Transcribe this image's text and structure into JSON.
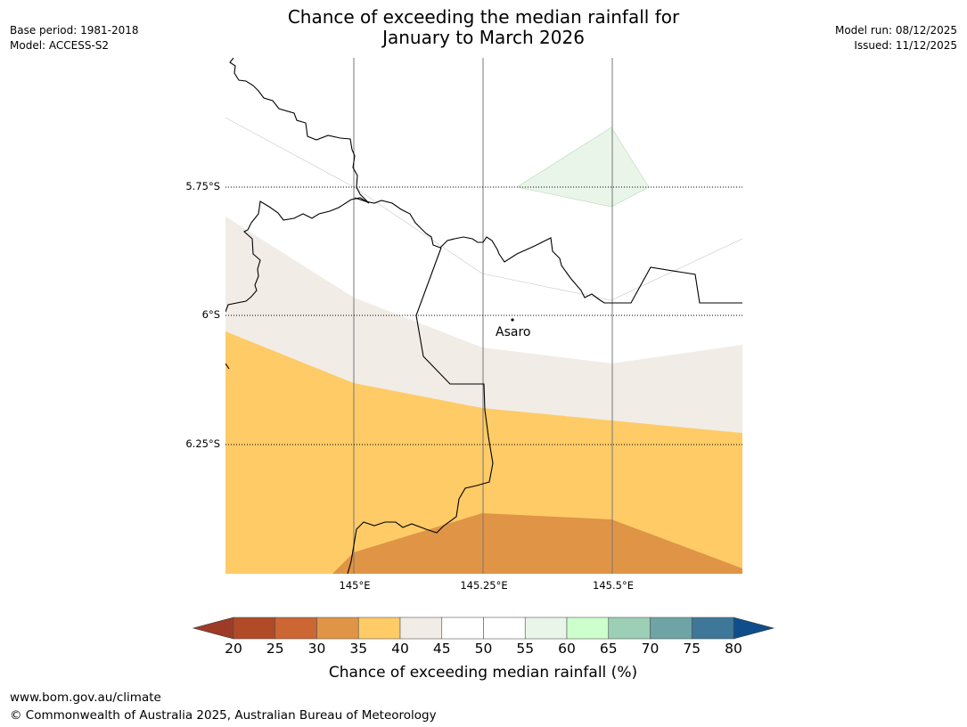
{
  "header": {
    "title_line1": "Chance of exceeding the median rainfall for",
    "title_line2": "January to March 2026",
    "base_period": "Base period: 1981-2018",
    "model": "Model: ACCESS-S2",
    "model_run": "Model run: 08/12/2025",
    "issued": "Issued: 11/12/2025"
  },
  "map": {
    "latitude_labels": [
      "5.75°S",
      "6°S",
      "6.25°S"
    ],
    "longitude_labels": [
      "145°E",
      "145.25°E",
      "145.5°E"
    ],
    "place_label": "Asaro",
    "colors": {
      "20-25": "#b04a27",
      "30-35": "#e09445",
      "35-40": "#fecb67",
      "40-45": "#f1ece6",
      "55-60": "#e9f5e9",
      "background": "#ffffff"
    }
  },
  "colorbar": {
    "title": "Chance of exceeding median rainfall (%)",
    "ticks": [
      "20",
      "25",
      "30",
      "35",
      "40",
      "45",
      "50",
      "55",
      "60",
      "65",
      "70",
      "75",
      "80"
    ],
    "colors": [
      "#b04a27",
      "#cc6633",
      "#e09445",
      "#fecb67",
      "#f1ece6",
      "#ffffff",
      "#ffffff",
      "#e9f5e9",
      "#ccffcc",
      "#9ccfb5",
      "#6ea4a5",
      "#3e7797"
    ],
    "under_color": "#9e3b27",
    "over_color": "#104e8b"
  },
  "footer": {
    "url": "www.bom.gov.au/climate",
    "copyright": "© Commonwealth of Australia 2025, Australian Bureau of Meteorology"
  }
}
